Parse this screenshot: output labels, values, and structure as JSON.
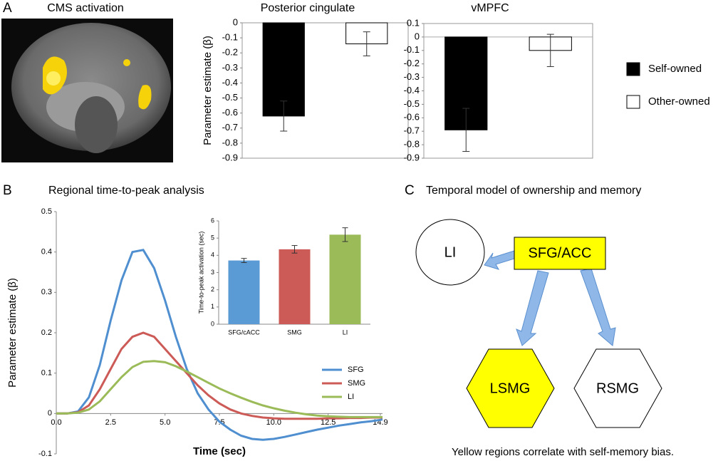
{
  "panel_labels": [
    "A",
    "B",
    "C"
  ],
  "image": {
    "title": "CMS activation"
  },
  "chart_data": [
    {
      "type": "bar",
      "title": "Posterior cingulate",
      "y_label": "Parameter estimate (β)",
      "ylim": [
        -0.9,
        0
      ],
      "yticks": [
        0,
        -0.1,
        -0.2,
        -0.3,
        -0.4,
        -0.5,
        -0.6,
        -0.7,
        -0.8,
        -0.9
      ],
      "series": [
        {
          "color": "#000000",
          "values": [
            -0.62
          ],
          "errors": [
            0.1
          ]
        },
        {
          "color": "#ffffff",
          "values": [
            -0.14
          ],
          "errors": [
            0.08
          ]
        }
      ]
    },
    {
      "type": "bar",
      "title": "vMPFC",
      "ylim": [
        -0.9,
        0.1
      ],
      "yticks": [
        0.1,
        0,
        -0.1,
        -0.2,
        -0.3,
        -0.4,
        -0.5,
        -0.6,
        -0.7,
        -0.8,
        -0.9
      ],
      "series": [
        {
          "name": "Self-owned",
          "color": "#000000",
          "values": [
            -0.69
          ],
          "errors": [
            0.16
          ]
        },
        {
          "name": "Other-owned",
          "color": "#ffffff",
          "values": [
            -0.1
          ],
          "errors": [
            0.12
          ]
        }
      ]
    },
    {
      "type": "line",
      "title": "Regional time-to-peak analysis",
      "x_label": "Time (sec)",
      "y_label": "Parameter estimate (β)",
      "xlim": [
        0,
        15
      ],
      "xticks": [
        {
          "value": 0,
          "label": "0.0"
        },
        2.5,
        {
          "value": 5,
          "label": "5.0"
        },
        7.5,
        {
          "value": 10,
          "label": "10.0"
        },
        12.5,
        14.9
      ],
      "ylim": [
        -0.1,
        0.5
      ],
      "yticks": [
        0.5,
        0.4,
        0.3,
        0.2,
        0.1,
        0,
        -0.1
      ],
      "legend": "lower right",
      "x": [
        0,
        0.5,
        1,
        1.5,
        2,
        2.5,
        3,
        3.5,
        4,
        4.5,
        5,
        5.5,
        6,
        6.5,
        7,
        7.5,
        8,
        8.5,
        9,
        9.5,
        10,
        10.5,
        11,
        11.5,
        12,
        12.5,
        13,
        13.5,
        14,
        14.5,
        15
      ],
      "series": [
        {
          "name": "SFG",
          "color": "#4f8fd0",
          "values": [
            0,
            0,
            0.005,
            0.04,
            0.12,
            0.23,
            0.33,
            0.4,
            0.405,
            0.36,
            0.28,
            0.19,
            0.11,
            0.05,
            0.01,
            -0.02,
            -0.04,
            -0.055,
            -0.063,
            -0.065,
            -0.063,
            -0.058,
            -0.052,
            -0.046,
            -0.04,
            -0.035,
            -0.03,
            -0.026,
            -0.022,
            -0.019,
            -0.015
          ]
        },
        {
          "name": "SMG",
          "color": "#cc5b57",
          "values": [
            0,
            0,
            0.003,
            0.02,
            0.06,
            0.11,
            0.16,
            0.19,
            0.2,
            0.19,
            0.16,
            0.13,
            0.1,
            0.07,
            0.045,
            0.025,
            0.01,
            0,
            -0.006,
            -0.01,
            -0.012,
            -0.013,
            -0.013,
            -0.013,
            -0.013,
            -0.012,
            -0.012,
            -0.011,
            -0.011,
            -0.01,
            -0.01
          ]
        },
        {
          "name": "LI",
          "color": "#9bbb59",
          "values": [
            0,
            0,
            0.002,
            0.01,
            0.03,
            0.06,
            0.09,
            0.115,
            0.128,
            0.13,
            0.127,
            0.117,
            0.104,
            0.09,
            0.076,
            0.062,
            0.05,
            0.039,
            0.029,
            0.02,
            0.013,
            0.007,
            0.002,
            -0.002,
            -0.005,
            -0.007,
            -0.008,
            -0.009,
            -0.009,
            -0.009,
            -0.009
          ]
        }
      ]
    },
    {
      "type": "bar",
      "y_label": "Time-to-peak activation (sec)",
      "categories": [
        "SFG/cACC",
        "SMG",
        "LI"
      ],
      "values": [
        3.7,
        4.35,
        5.2
      ],
      "errors": [
        0.12,
        0.22,
        0.4
      ],
      "colors": [
        "#5b9bd5",
        "#cc5b57",
        "#9bbb59"
      ],
      "ylim": [
        0,
        6
      ],
      "yticks": [
        0,
        1,
        2,
        3,
        4,
        5,
        6
      ]
    }
  ],
  "diagram": {
    "title": "Temporal model of ownership and memory",
    "nodes": [
      "LI",
      "SFG/ACC",
      "LSMG",
      "RSMG"
    ],
    "caption": "Yellow regions correlate with self-memory bias."
  }
}
